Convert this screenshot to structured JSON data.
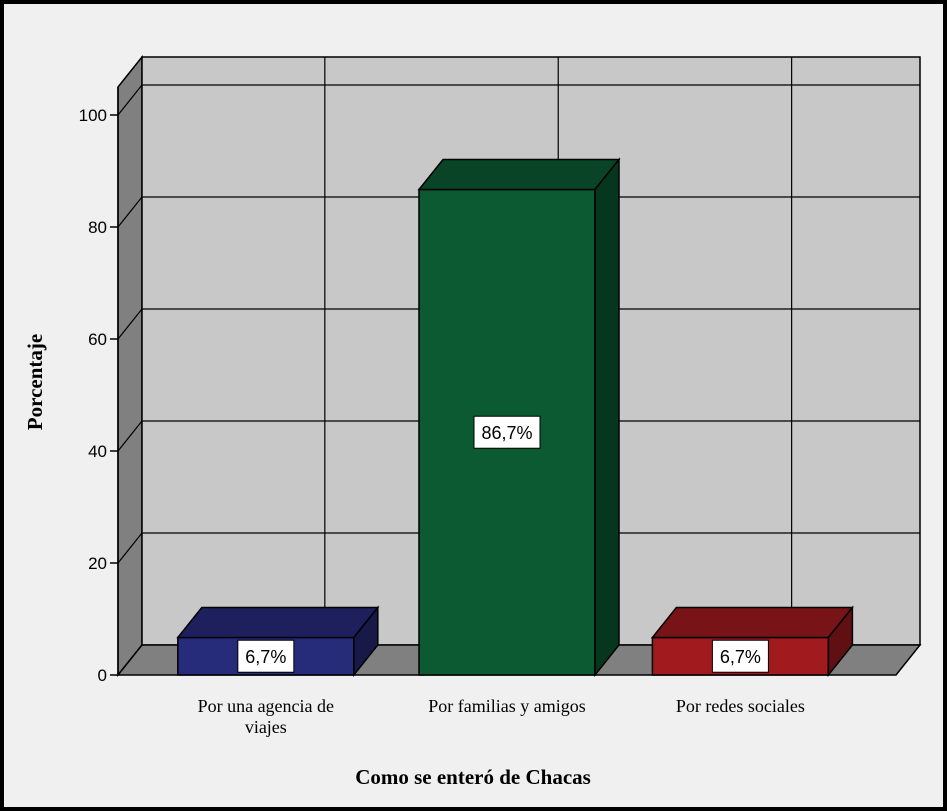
{
  "chart_data": {
    "type": "bar",
    "style": "3d",
    "categories": [
      [
        "Por una agencia de",
        "viajes"
      ],
      [
        "Por familias y amigos"
      ],
      [
        "Por redes sociales"
      ]
    ],
    "values": [
      6.7,
      86.7,
      6.7
    ],
    "data_labels": [
      "6,7%",
      "86,7%",
      "6,7%"
    ],
    "bar_colors": [
      "#262b7a",
      "#0c5a32",
      "#a01a1e"
    ],
    "xlabel": "Como se enteró de Chacas",
    "ylabel": "Porcentaje",
    "ylim": [
      0,
      100
    ],
    "yticks": [
      0,
      20,
      40,
      60,
      80,
      100
    ],
    "grid": true,
    "legend": "none"
  },
  "colors": {
    "background": "#f0f0f0",
    "back_wall": "#c8c8c8",
    "side_wall": "#808080",
    "floor": "#808080",
    "frame": "#000000"
  }
}
